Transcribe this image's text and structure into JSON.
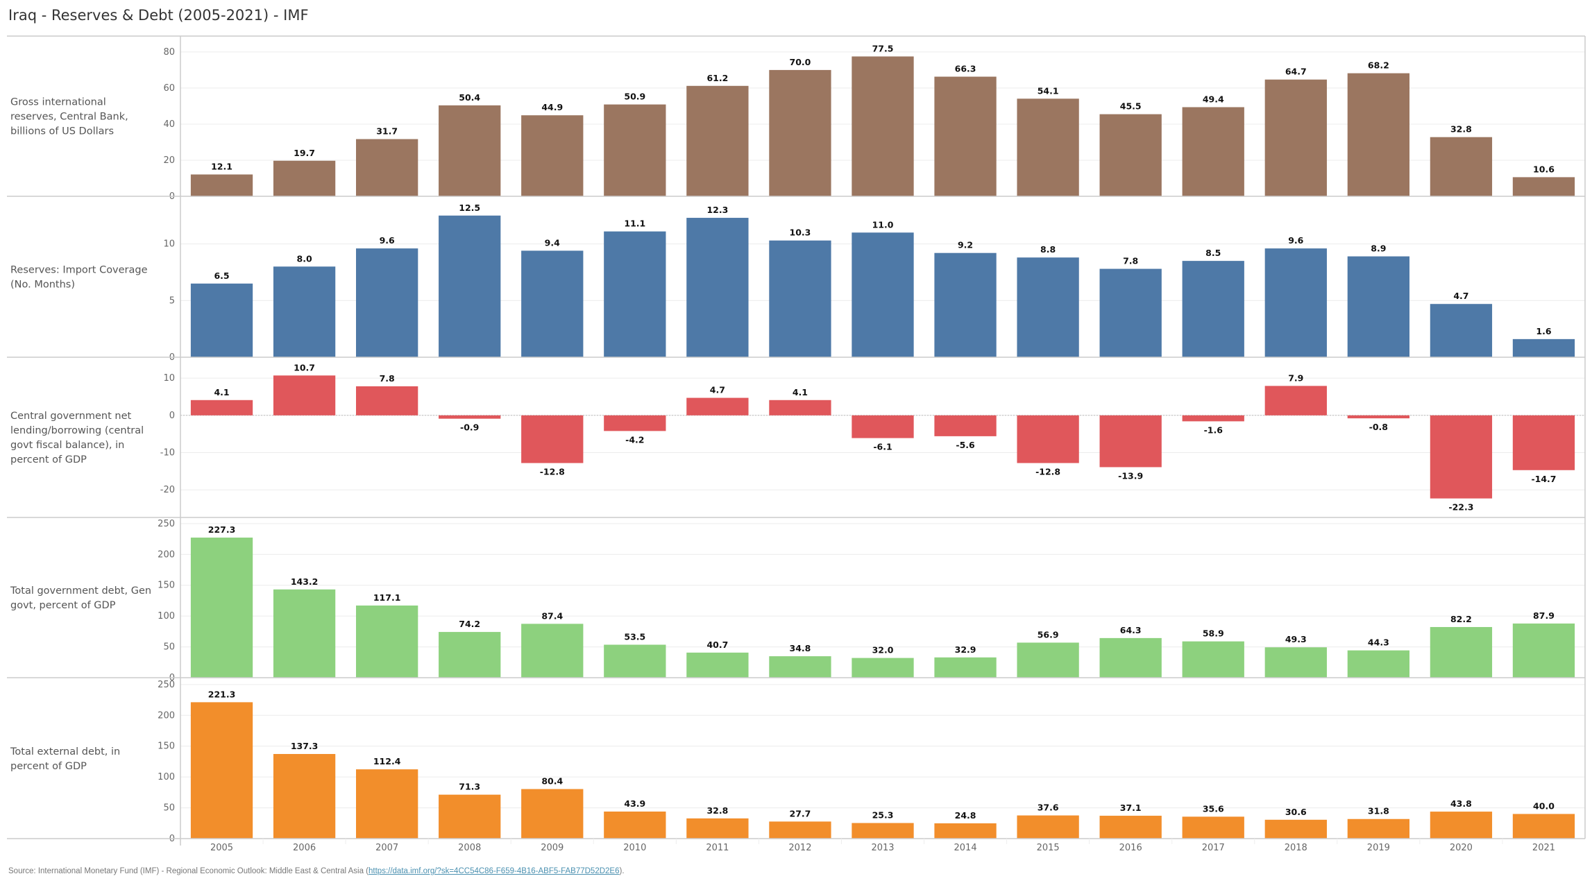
{
  "title": "Iraq - Reserves & Debt (2005-2021) - IMF",
  "source": {
    "prefix": "Source: International Monetary Fund (IMF) - Regional Economic Outlook: Middle East & Central Asia (",
    "link_text": "https://data.imf.org/?sk=4CC54C86-F659-4B16-ABF5-FAB77D52D2E6",
    "suffix": ")."
  },
  "colors": {
    "reserves": "#9b7660",
    "import_coverage": "#4e79a7",
    "fiscal_balance": "#e0575b",
    "govt_debt": "#8dd17e",
    "external_debt": "#f28e2b"
  },
  "chart_data": [
    {
      "type": "bar",
      "id": "reserves",
      "title": "Gross international reserves, Central Bank, billions of US Dollars",
      "label_lines": [
        "Gross international",
        "reserves, Central Bank,",
        "billions of US Dollars"
      ],
      "categories": [
        "2005",
        "2006",
        "2007",
        "2008",
        "2009",
        "2010",
        "2011",
        "2012",
        "2013",
        "2014",
        "2015",
        "2016",
        "2017",
        "2018",
        "2019",
        "2020",
        "2021"
      ],
      "values": [
        12.1,
        19.7,
        31.7,
        50.4,
        44.9,
        50.9,
        61.2,
        70.0,
        77.5,
        66.3,
        54.1,
        45.5,
        49.4,
        64.7,
        68.2,
        32.8,
        10.6
      ],
      "yticks": [
        0,
        20,
        40,
        60,
        80
      ],
      "ylim": [
        0,
        88.8
      ],
      "color": "#9b7660",
      "grid": true
    },
    {
      "type": "bar",
      "id": "import_coverage",
      "title": "Reserves: Import Coverage (No. Months)",
      "label_lines": [
        "Reserves: Import Coverage",
        "(No. Months)"
      ],
      "categories": [
        "2005",
        "2006",
        "2007",
        "2008",
        "2009",
        "2010",
        "2011",
        "2012",
        "2013",
        "2014",
        "2015",
        "2016",
        "2017",
        "2018",
        "2019",
        "2020",
        "2021"
      ],
      "values": [
        6.5,
        8.0,
        9.6,
        12.5,
        9.4,
        11.1,
        12.3,
        10.3,
        11.0,
        9.2,
        8.8,
        7.8,
        8.5,
        9.6,
        8.9,
        4.7,
        1.6
      ],
      "yticks": [
        0,
        5,
        10
      ],
      "ylim": [
        0,
        14.2
      ],
      "color": "#4e79a7",
      "grid": true
    },
    {
      "type": "bar",
      "id": "fiscal_balance",
      "title": "Central government net lending/borrowing (central govt fiscal balance), in percent of GDP",
      "label_lines": [
        "Central government net",
        "lending/borrowing (central",
        "govt fiscal balance), in",
        "percent of GDP"
      ],
      "categories": [
        "2005",
        "2006",
        "2007",
        "2008",
        "2009",
        "2010",
        "2011",
        "2012",
        "2013",
        "2014",
        "2015",
        "2016",
        "2017",
        "2018",
        "2019",
        "2020",
        "2021"
      ],
      "values": [
        4.1,
        10.7,
        7.8,
        -0.9,
        -12.8,
        -4.2,
        4.7,
        4.1,
        -6.1,
        -5.6,
        -12.8,
        -13.9,
        -1.6,
        7.9,
        -0.8,
        -22.3,
        -14.7
      ],
      "yticks": [
        -20,
        -10,
        0,
        10
      ],
      "ylim": [
        -27.4,
        15.6
      ],
      "color": "#e0575b",
      "grid": true
    },
    {
      "type": "bar",
      "id": "govt_debt",
      "title": "Total government debt, Gen govt, percent of GDP",
      "label_lines": [
        "Total government debt, Gen",
        "govt, percent of GDP"
      ],
      "categories": [
        "2005",
        "2006",
        "2007",
        "2008",
        "2009",
        "2010",
        "2011",
        "2012",
        "2013",
        "2014",
        "2015",
        "2016",
        "2017",
        "2018",
        "2019",
        "2020",
        "2021"
      ],
      "values": [
        227.3,
        143.2,
        117.1,
        74.2,
        87.4,
        53.5,
        40.7,
        34.8,
        32.0,
        32.9,
        56.9,
        64.3,
        58.9,
        49.3,
        44.3,
        82.2,
        87.9
      ],
      "yticks": [
        0,
        50,
        100,
        150,
        200,
        250
      ],
      "ylim": [
        0,
        260
      ],
      "color": "#8dd17e",
      "grid": true
    },
    {
      "type": "bar",
      "id": "external_debt",
      "title": "Total external debt, in percent of GDP",
      "label_lines": [
        "Total external debt, in",
        "percent of GDP"
      ],
      "categories": [
        "2005",
        "2006",
        "2007",
        "2008",
        "2009",
        "2010",
        "2011",
        "2012",
        "2013",
        "2014",
        "2015",
        "2016",
        "2017",
        "2018",
        "2019",
        "2020",
        "2021"
      ],
      "values": [
        221.3,
        137.3,
        112.4,
        71.3,
        80.4,
        43.9,
        32.8,
        27.7,
        25.3,
        24.8,
        37.6,
        37.1,
        35.6,
        30.6,
        31.8,
        43.8,
        40.0
      ],
      "yticks": [
        0,
        50,
        100,
        150,
        200,
        250
      ],
      "ylim": [
        0,
        260
      ],
      "color": "#f28e2b",
      "grid": true
    }
  ]
}
